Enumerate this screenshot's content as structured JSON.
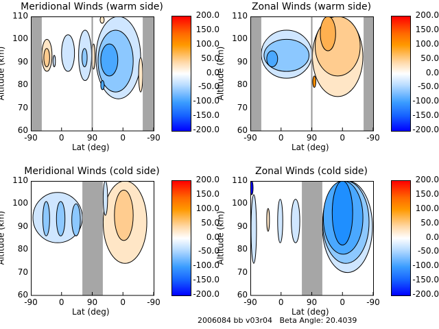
{
  "footer": "2006084 bb v03r04   Beta Angle: 20.4039",
  "chart_data": [
    {
      "type": "heatmap",
      "title": "Meridional Winds (warm side)",
      "xlabel": "Lat (deg)",
      "ylabel": "Altitude (km)",
      "xticks": [
        "-90",
        "0",
        "90",
        "0",
        "-90"
      ],
      "yticks": [
        "110",
        "100",
        "90",
        "80",
        "70",
        "60"
      ],
      "ylim": [
        60,
        110
      ],
      "colorbar_ticks": [
        "200.0",
        "150.0",
        "100.0",
        "50.0",
        "0.0",
        "-50.0",
        "-100.0",
        "-150.0",
        "-200.0"
      ],
      "colorbar_range": [
        -200,
        200
      ],
      "no_data": [
        [
          0,
          32
        ],
        [
          328,
          360
        ]
      ],
      "divider": 180,
      "regions": [
        {
          "x": [
            191,
            322
          ],
          "alt": [
            74,
            110
          ],
          "level": -25
        },
        {
          "x": [
            197,
            300
          ],
          "alt": [
            77,
            104
          ],
          "level": -50
        },
        {
          "x": [
            205,
            255
          ],
          "alt": [
            84,
            98
          ],
          "level": -75
        },
        {
          "x": [
            205,
            215
          ],
          "alt": [
            78,
            82
          ],
          "level": -75
        },
        {
          "x": [
            140,
            178
          ],
          "alt": [
            82,
            104
          ],
          "level": -25
        },
        {
          "x": [
            150,
            165
          ],
          "alt": [
            88,
            96
          ],
          "level": -50
        },
        {
          "x": [
            90,
            128
          ],
          "alt": [
            86,
            102
          ],
          "level": -25
        },
        {
          "x": [
            65,
            72
          ],
          "alt": [
            88,
            93
          ],
          "level": -25
        },
        {
          "x": [
            32,
            62
          ],
          "alt": [
            86,
            100
          ],
          "level": 25
        },
        {
          "x": [
            38,
            55
          ],
          "alt": [
            88,
            96
          ],
          "level": 50
        },
        {
          "x": [
            316,
            328
          ],
          "alt": [
            77,
            92
          ],
          "level": 25
        },
        {
          "x": [
            180,
            188
          ],
          "alt": [
            87,
            98
          ],
          "level": 25
        },
        {
          "x": [
            203,
            215
          ],
          "alt": [
            107,
            110
          ],
          "level": 25
        }
      ]
    },
    {
      "type": "heatmap",
      "title": "Zonal Winds (warm side)",
      "xlabel": "Lat (deg)",
      "ylabel": "Altitude (km)",
      "xticks": [
        "-90",
        "0",
        "90",
        "0",
        "-90"
      ],
      "yticks": [
        "110",
        "100",
        "90",
        "80",
        "70",
        "60"
      ],
      "ylim": [
        60,
        110
      ],
      "colorbar_ticks": [
        "200.0",
        "150.0",
        "100.0",
        "50.0",
        "0.0",
        "-50.0",
        "-100.0",
        "-150.0",
        "-200.0"
      ],
      "colorbar_range": [
        -200,
        200
      ],
      "no_data": [
        [
          0,
          32
        ],
        [
          332,
          360
        ]
      ],
      "divider": 180,
      "regions": [
        {
          "x": [
            32,
            180
          ],
          "alt": [
            83,
            104
          ],
          "level": -25
        },
        {
          "x": [
            40,
            172
          ],
          "alt": [
            86,
            100
          ],
          "level": -50
        },
        {
          "x": [
            48,
            80
          ],
          "alt": [
            88,
            95
          ],
          "level": -75
        },
        {
          "x": [
            182,
            330
          ],
          "alt": [
            75,
            110
          ],
          "level": 25
        },
        {
          "x": [
            190,
            322
          ],
          "alt": [
            84,
            110
          ],
          "level": 50
        },
        {
          "x": [
            205,
            250
          ],
          "alt": [
            95,
            110
          ],
          "level": 75
        },
        {
          "x": [
            183,
            192
          ],
          "alt": [
            79,
            84
          ],
          "level": 100
        }
      ]
    },
    {
      "type": "heatmap",
      "title": "Meridional Winds (cold side)",
      "xlabel": "Lat (deg)",
      "ylabel": "Altitude (km)",
      "xticks": [
        "-90",
        "0",
        "90",
        "0",
        "-90"
      ],
      "yticks": [
        "110",
        "100",
        "90",
        "80",
        "70",
        "60"
      ],
      "ylim": [
        60,
        110
      ],
      "colorbar_ticks": [
        "200.0",
        "150.0",
        "100.0",
        "50.0",
        "0.0",
        "-50.0",
        "-100.0",
        "-150.0",
        "-200.0"
      ],
      "colorbar_range": [
        -200,
        200
      ],
      "no_data": [
        [
          151,
          211
        ]
      ],
      "regions": [
        {
          "x": [
            6,
            151
          ],
          "alt": [
            83,
            105
          ],
          "level": -25
        },
        {
          "x": [
            35,
            55
          ],
          "alt": [
            86,
            101
          ],
          "level": -50
        },
        {
          "x": [
            75,
            100
          ],
          "alt": [
            86,
            101
          ],
          "level": -50
        },
        {
          "x": [
            120,
            145
          ],
          "alt": [
            86,
            100
          ],
          "level": -50
        },
        {
          "x": [
            212,
            340
          ],
          "alt": [
            74,
            110
          ],
          "level": 25
        },
        {
          "x": [
            245,
            300
          ],
          "alt": [
            84,
            106
          ],
          "level": 50
        },
        {
          "x": [
            212,
            225
          ],
          "alt": [
            95,
            110
          ],
          "level": -25
        }
      ]
    },
    {
      "type": "heatmap",
      "title": "Zonal Winds (cold side)",
      "xlabel": "Lat (deg)",
      "ylabel": "Altitude (km)",
      "xticks": [
        "-90",
        "0",
        "90",
        "0",
        "-90"
      ],
      "yticks": [
        "110",
        "100",
        "90",
        "80",
        "70",
        "60"
      ],
      "ylim": [
        60,
        110
      ],
      "colorbar_ticks": [
        "200.0",
        "150.0",
        "100.0",
        "50.0",
        "0.0",
        "-50.0",
        "-100.0",
        "-150.0",
        "-200.0"
      ],
      "colorbar_range": [
        -200,
        200
      ],
      "no_data": [
        [
          151,
          211
        ]
      ],
      "regions": [
        {
          "x": [
            211,
            358
          ],
          "alt": [
            70,
            110
          ],
          "level": -25
        },
        {
          "x": [
            212,
            348
          ],
          "alt": [
            74,
            110
          ],
          "level": -50
        },
        {
          "x": [
            214,
            330
          ],
          "alt": [
            78,
            110
          ],
          "level": -75
        },
        {
          "x": [
            240,
            300
          ],
          "alt": [
            82,
            110
          ],
          "level": -100
        },
        {
          "x": [
            2,
            18
          ],
          "alt": [
            74,
            104
          ],
          "level": -25
        },
        {
          "x": [
            48,
            56
          ],
          "alt": [
            88,
            98
          ],
          "level": 25
        },
        {
          "x": [
            80,
            95
          ],
          "alt": [
            83,
            102
          ],
          "level": -25
        },
        {
          "x": [
            120,
            145
          ],
          "alt": [
            83,
            102
          ],
          "level": -25
        },
        {
          "x": [
            0,
            8
          ],
          "alt": [
            104,
            110
          ],
          "level": -200
        }
      ]
    }
  ]
}
